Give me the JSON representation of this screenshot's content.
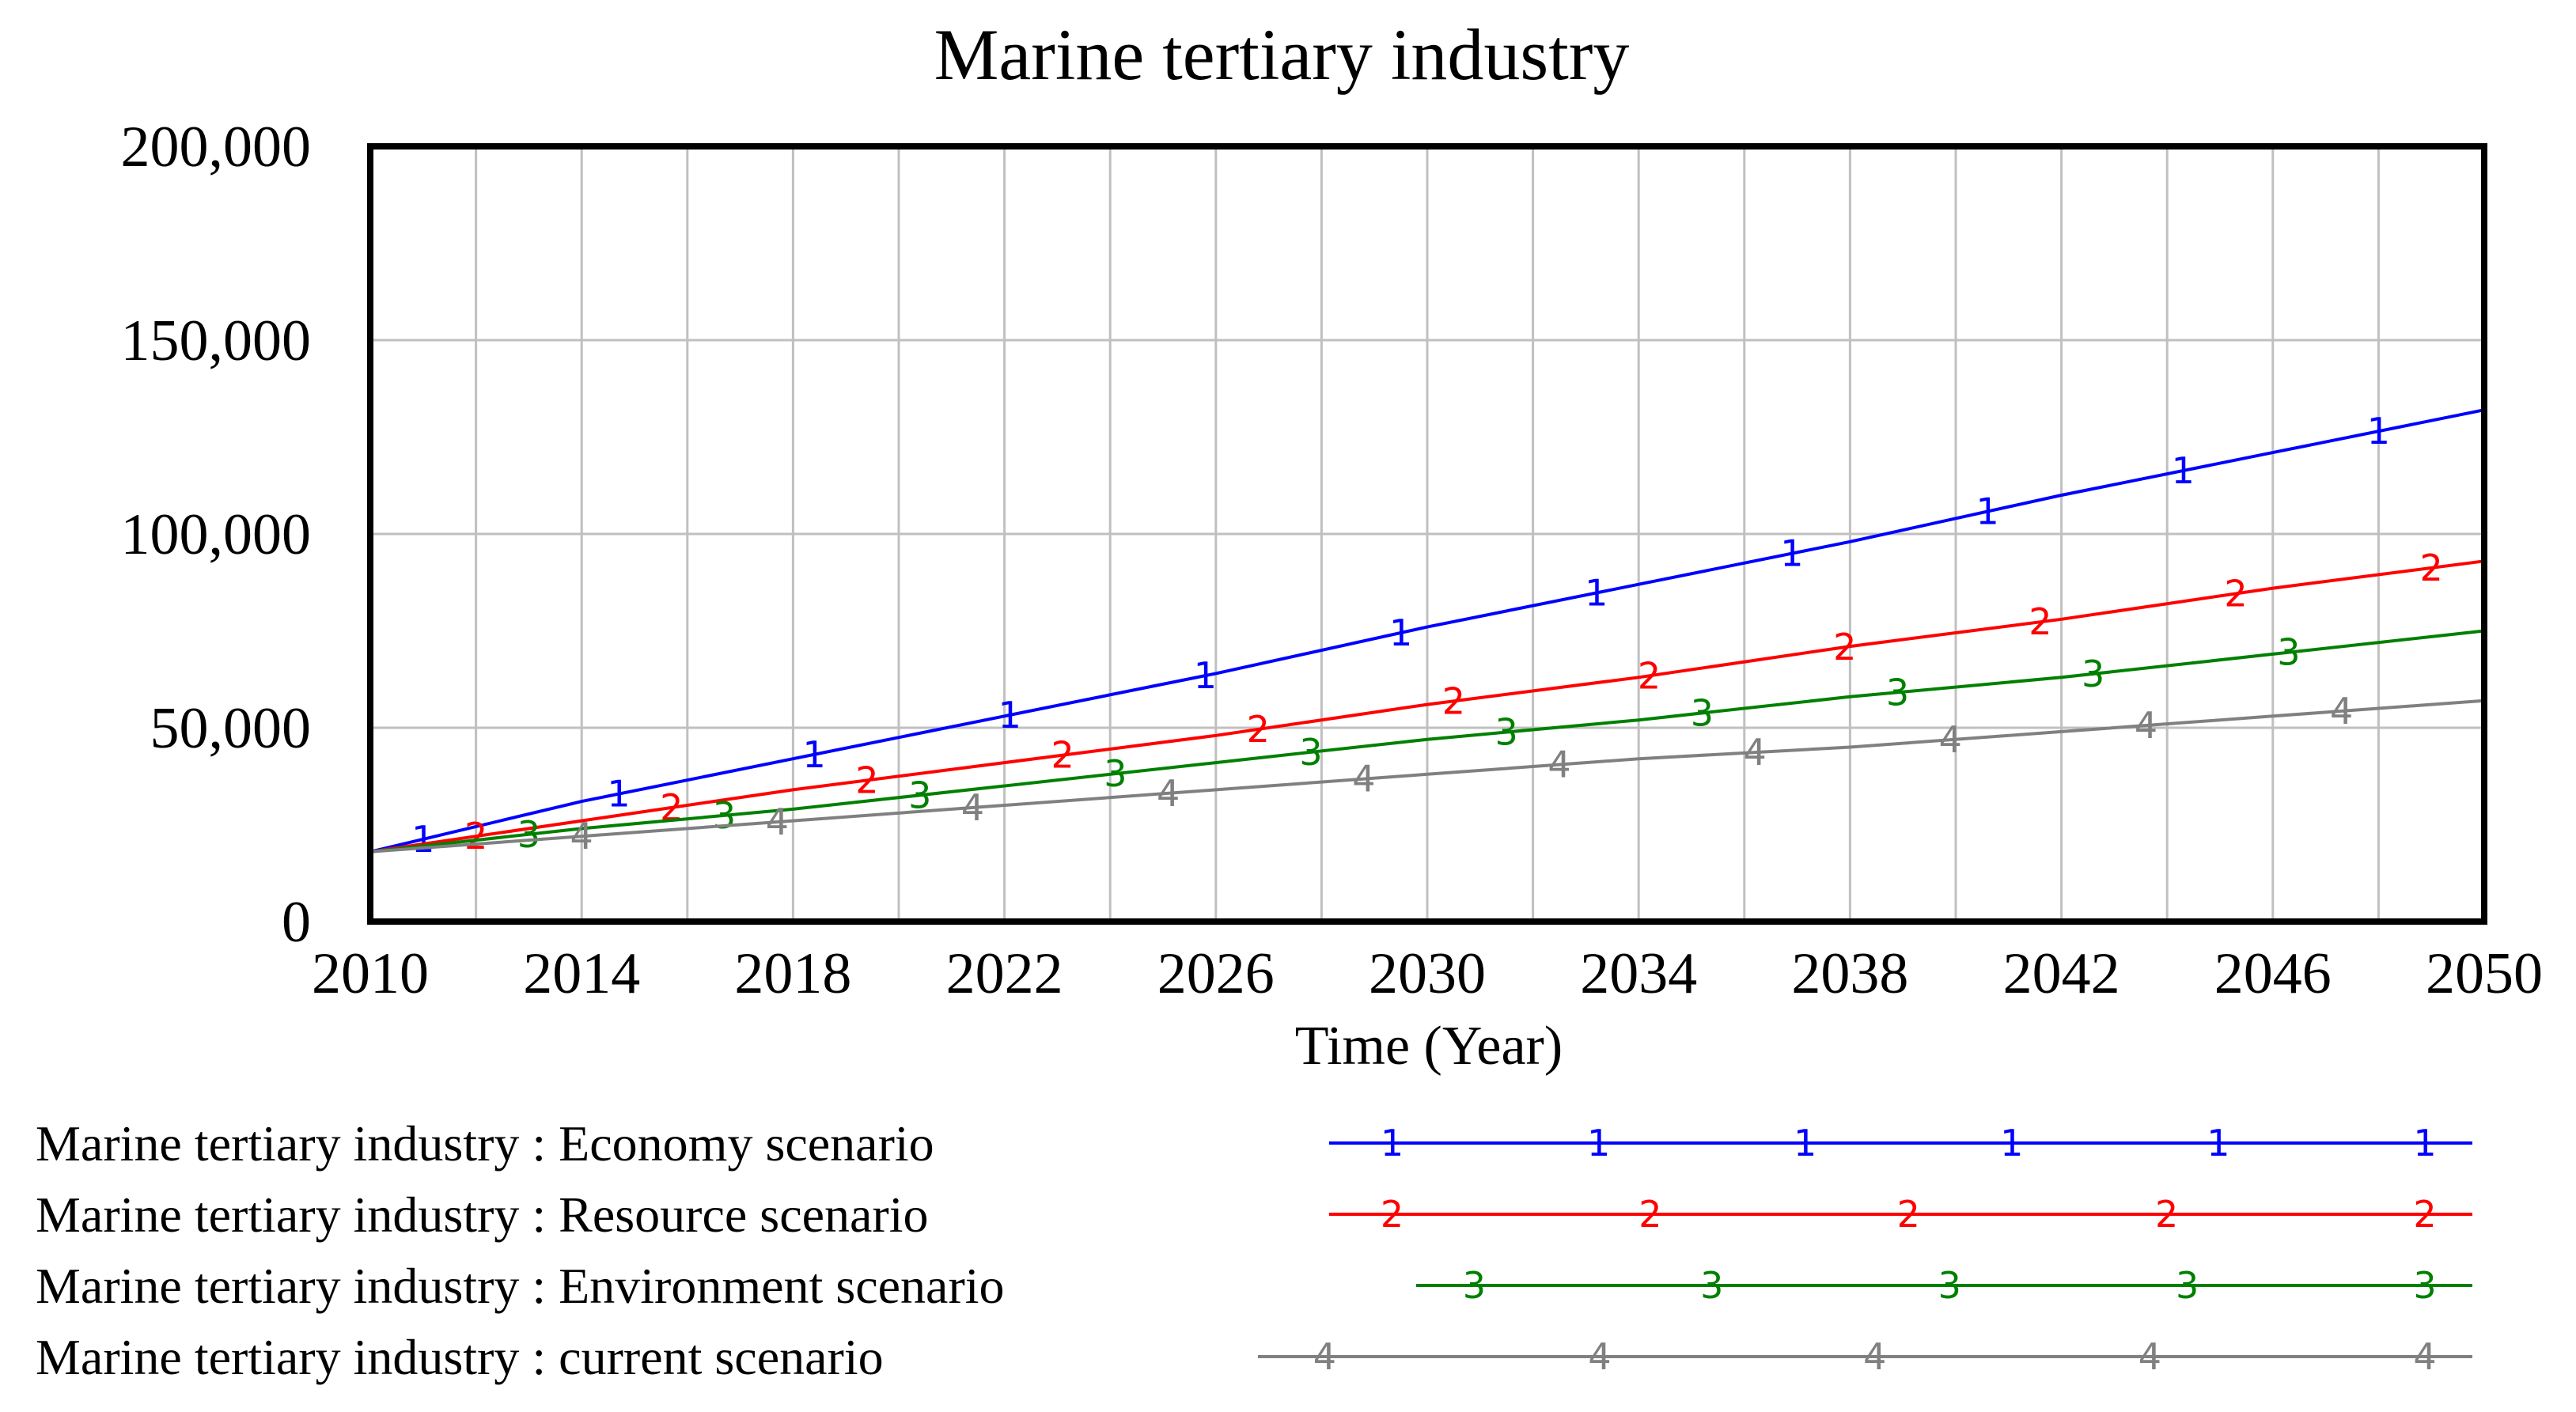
{
  "chart_data": {
    "type": "line",
    "title": "Marine tertiary industry",
    "xlabel": "Time (Year)",
    "ylabel": "",
    "xlim": [
      2010,
      2050
    ],
    "ylim": [
      0,
      200000
    ],
    "x_ticks": [
      2010,
      2014,
      2018,
      2022,
      2026,
      2030,
      2034,
      2038,
      2042,
      2046,
      2050
    ],
    "x_tick_labels": [
      "2010",
      "2014",
      "2018",
      "2022",
      "2026",
      "2030",
      "2034",
      "2038",
      "2042",
      "2046",
      "2050"
    ],
    "y_ticks": [
      0,
      50000,
      100000,
      150000,
      200000
    ],
    "y_tick_labels": [
      "0",
      "50,000",
      "100,000",
      "150,000",
      "200,000"
    ],
    "grid": true,
    "legend_position": "bottom",
    "x": [
      2010,
      2014,
      2018,
      2022,
      2026,
      2030,
      2034,
      2038,
      2042,
      2046,
      2050
    ],
    "series": [
      {
        "name": "Marine tertiary industry : Economy scenario",
        "marker": "1",
        "color": "#0000ff",
        "values": [
          18000,
          31000,
          42000,
          53000,
          64000,
          76000,
          87000,
          98000,
          110000,
          121000,
          132000
        ]
      },
      {
        "name": "Marine tertiary industry : Resource scenario",
        "marker": "2",
        "color": "#ff0000",
        "values": [
          18000,
          26000,
          34000,
          41000,
          48000,
          56000,
          63000,
          71000,
          78000,
          86000,
          93000
        ]
      },
      {
        "name": "Marine tertiary industry : Environment scenario",
        "marker": "3",
        "color": "#008000",
        "values": [
          18000,
          24000,
          29000,
          35000,
          41000,
          47000,
          52000,
          58000,
          63000,
          69000,
          75000
        ]
      },
      {
        "name": "Marine tertiary industry : current scenario",
        "marker": "4",
        "color": "#808080",
        "values": [
          18000,
          22000,
          26000,
          30000,
          34000,
          38000,
          42000,
          45000,
          49000,
          53000,
          57000
        ]
      }
    ]
  }
}
